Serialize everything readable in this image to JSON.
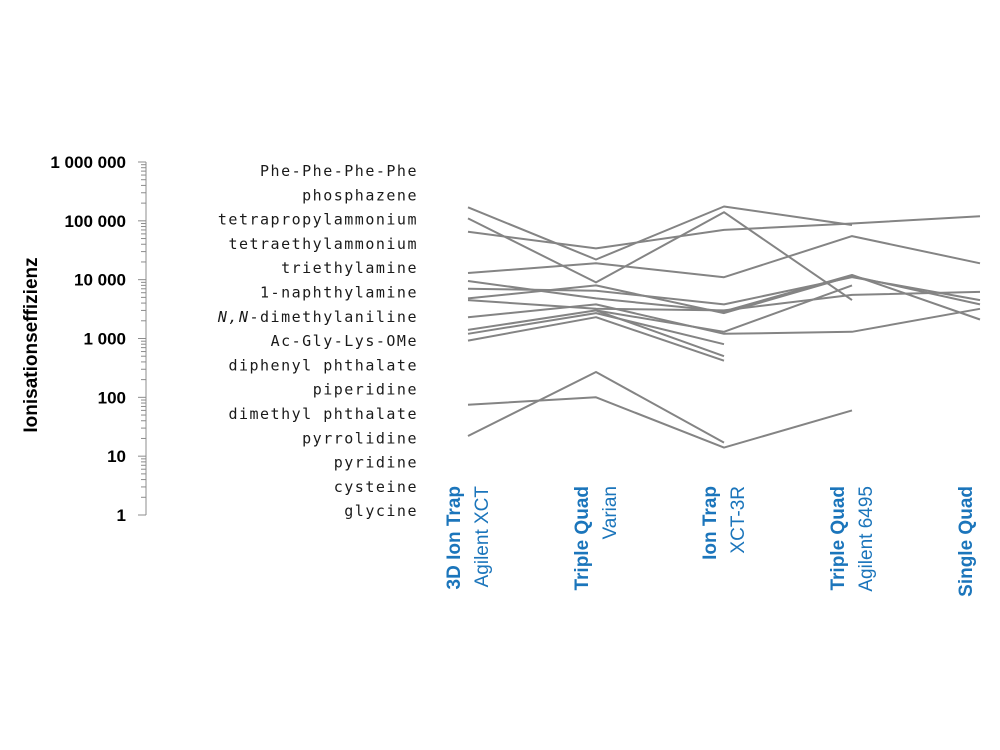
{
  "chart_data": {
    "type": "line",
    "ylabel": "Ionisationseffizienz",
    "yscale": "log",
    "ylim": [
      1,
      1000000
    ],
    "y_ticks": [
      "1 000 000",
      "100 000",
      "10 000",
      "1 000",
      "100",
      "10",
      "1"
    ],
    "compound_labels": [
      "Phe-Phe-Phe-Phe",
      "phosphazene",
      "tetrapropylammonium",
      "tetraethylammonium",
      "triethylamine",
      "1-naphthylamine",
      "N,N-dimethylaniline",
      "Ac-Gly-Lys-OMe",
      "diphenyl phthalate",
      "piperidine",
      "dimethyl phthalate",
      "pyrrolidine",
      "pyridine",
      "cysteine",
      "glycine"
    ],
    "instruments": [
      {
        "type": "3D Ion Trap",
        "model": "Agilent XCT"
      },
      {
        "type": "Triple Quad",
        "model": "Varian"
      },
      {
        "type": "Ion Trap",
        "model": "XCT-3R"
      },
      {
        "type": "Triple Quad",
        "model": "Agilent 6495"
      },
      {
        "type": "Single Quad",
        "model": ""
      }
    ],
    "series": [
      {
        "values": [
          170000,
          22000,
          175000,
          85000,
          null
        ]
      },
      {
        "values": [
          110000,
          9000,
          140000,
          4500,
          null
        ]
      },
      {
        "values": [
          65000,
          34000,
          70000,
          90000,
          120000
        ]
      },
      {
        "values": [
          13000,
          19000,
          11000,
          55000,
          19000
        ]
      },
      {
        "values": [
          9500,
          4800,
          2900,
          12000,
          2100
        ]
      },
      {
        "values": [
          7000,
          6500,
          3800,
          11000,
          4500
        ]
      },
      {
        "values": [
          4800,
          8000,
          2700,
          11500,
          3800
        ]
      },
      {
        "values": [
          4500,
          3200,
          3000,
          5500,
          6200
        ]
      },
      {
        "values": [
          2300,
          3800,
          1200,
          1300,
          3200
        ]
      },
      {
        "values": [
          1400,
          3000,
          1300,
          8000,
          null
        ]
      },
      {
        "values": [
          1200,
          2700,
          800,
          null,
          null
        ]
      },
      {
        "values": [
          920,
          2300,
          420,
          null,
          null
        ]
      },
      {
        "values": [
          null,
          3000,
          500,
          null,
          null
        ]
      },
      {
        "values": [
          75,
          100,
          14,
          60,
          null
        ]
      },
      {
        "values": [
          22,
          270,
          17,
          null,
          null
        ]
      }
    ]
  }
}
